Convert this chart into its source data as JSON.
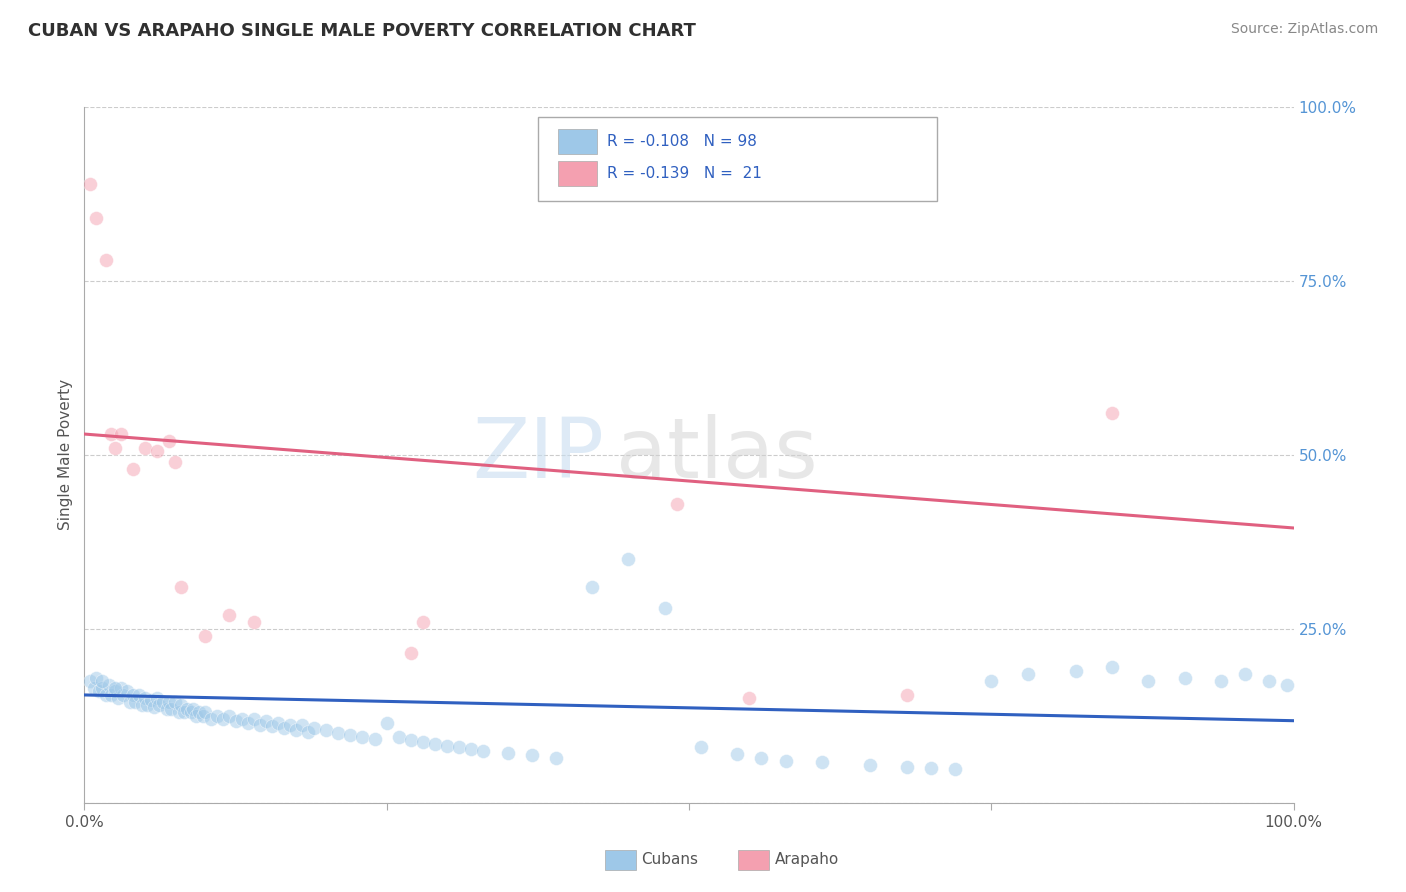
{
  "title": "CUBAN VS ARAPAHO SINGLE MALE POVERTY CORRELATION CHART",
  "source_text": "Source: ZipAtlas.com",
  "ylabel": "Single Male Poverty",
  "xlim": [
    0.0,
    1.0
  ],
  "ylim": [
    0.0,
    1.0
  ],
  "watermark_zip": "ZIP",
  "watermark_atlas": "atlas",
  "legend_cuban_label": "R = -0.108   N = 98",
  "legend_arapaho_label": "R = -0.139   N =  21",
  "cubans_scatter_x": [
    0.005,
    0.008,
    0.01,
    0.012,
    0.015,
    0.018,
    0.02,
    0.022,
    0.025,
    0.028,
    0.03,
    0.032,
    0.035,
    0.038,
    0.04,
    0.042,
    0.045,
    0.048,
    0.05,
    0.052,
    0.055,
    0.058,
    0.06,
    0.062,
    0.065,
    0.068,
    0.07,
    0.072,
    0.075,
    0.078,
    0.08,
    0.082,
    0.085,
    0.088,
    0.09,
    0.092,
    0.095,
    0.098,
    0.1,
    0.105,
    0.11,
    0.115,
    0.12,
    0.125,
    0.13,
    0.135,
    0.14,
    0.145,
    0.15,
    0.155,
    0.16,
    0.165,
    0.17,
    0.175,
    0.18,
    0.185,
    0.19,
    0.2,
    0.21,
    0.22,
    0.23,
    0.24,
    0.25,
    0.26,
    0.27,
    0.28,
    0.29,
    0.3,
    0.31,
    0.32,
    0.33,
    0.35,
    0.37,
    0.39,
    0.42,
    0.45,
    0.48,
    0.51,
    0.54,
    0.56,
    0.58,
    0.61,
    0.65,
    0.68,
    0.7,
    0.72,
    0.75,
    0.78,
    0.82,
    0.85,
    0.88,
    0.91,
    0.94,
    0.96,
    0.98,
    0.995,
    0.015,
    0.025
  ],
  "cubans_scatter_y": [
    0.175,
    0.165,
    0.18,
    0.16,
    0.165,
    0.155,
    0.17,
    0.155,
    0.16,
    0.15,
    0.165,
    0.155,
    0.16,
    0.145,
    0.155,
    0.145,
    0.155,
    0.14,
    0.15,
    0.14,
    0.148,
    0.138,
    0.15,
    0.14,
    0.145,
    0.135,
    0.145,
    0.135,
    0.145,
    0.13,
    0.14,
    0.13,
    0.135,
    0.13,
    0.135,
    0.125,
    0.13,
    0.125,
    0.13,
    0.12,
    0.125,
    0.12,
    0.125,
    0.118,
    0.12,
    0.115,
    0.12,
    0.112,
    0.118,
    0.11,
    0.115,
    0.108,
    0.112,
    0.105,
    0.112,
    0.102,
    0.108,
    0.105,
    0.1,
    0.098,
    0.095,
    0.092,
    0.115,
    0.095,
    0.09,
    0.088,
    0.085,
    0.082,
    0.08,
    0.078,
    0.075,
    0.072,
    0.068,
    0.065,
    0.31,
    0.35,
    0.28,
    0.08,
    0.07,
    0.065,
    0.06,
    0.058,
    0.055,
    0.052,
    0.05,
    0.048,
    0.175,
    0.185,
    0.19,
    0.195,
    0.175,
    0.18,
    0.175,
    0.185,
    0.175,
    0.17,
    0.175,
    0.165
  ],
  "arapaho_scatter_x": [
    0.005,
    0.01,
    0.018,
    0.022,
    0.025,
    0.03,
    0.04,
    0.05,
    0.06,
    0.07,
    0.075,
    0.08,
    0.1,
    0.12,
    0.14,
    0.27,
    0.28,
    0.49,
    0.55,
    0.68,
    0.85
  ],
  "arapaho_scatter_y": [
    0.89,
    0.84,
    0.78,
    0.53,
    0.51,
    0.53,
    0.48,
    0.51,
    0.505,
    0.52,
    0.49,
    0.31,
    0.24,
    0.27,
    0.26,
    0.215,
    0.26,
    0.43,
    0.15,
    0.155,
    0.56
  ],
  "cuban_trendline_x": [
    0.0,
    1.0
  ],
  "cuban_trendline_y": [
    0.155,
    0.118
  ],
  "arapaho_trendline_x": [
    0.0,
    1.0
  ],
  "arapaho_trendline_y": [
    0.53,
    0.395
  ],
  "scatter_alpha": 0.5,
  "scatter_size": 100,
  "cuban_color": "#9ec8e8",
  "arapaho_color": "#f4a0b0",
  "cuban_line_color": "#3060c0",
  "arapaho_line_color": "#e06080",
  "title_color": "#303030",
  "source_color": "#888888",
  "grid_color": "#cccccc",
  "right_label_color": "#5595d5",
  "axis_label_color": "#555555"
}
